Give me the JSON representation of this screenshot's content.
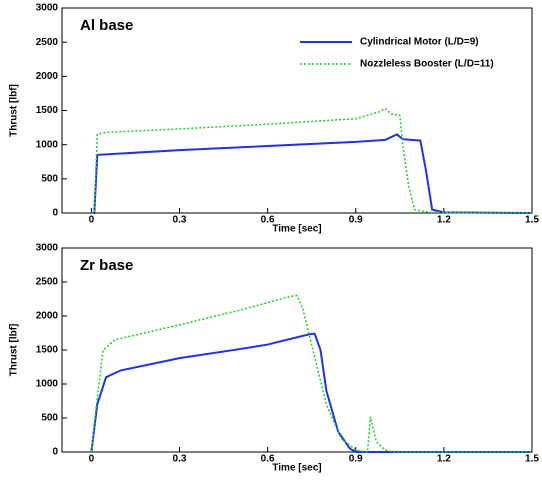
{
  "chart_data": [
    {
      "type": "line",
      "annotation": "Al base",
      "xlabel": "Time [sec]",
      "ylabel": "Thrust [lbf]",
      "xlim": [
        -0.1,
        1.5
      ],
      "ylim": [
        0,
        3000
      ],
      "xticks": [
        0,
        0.3,
        0.6,
        0.9,
        1.2,
        1.5
      ],
      "yticks": [
        0,
        500,
        1000,
        1500,
        2000,
        2500,
        3000
      ],
      "legend": "upper right",
      "series": [
        {
          "name": "Cylindrical Motor (L/D=9)",
          "color": "#2233dd",
          "style": "solid",
          "x": [
            0,
            0.01,
            0.02,
            0.1,
            0.3,
            0.6,
            0.9,
            1.0,
            1.04,
            1.06,
            1.12,
            1.14,
            1.16,
            1.2,
            1.5
          ],
          "values": [
            0,
            0,
            850,
            870,
            920,
            980,
            1040,
            1070,
            1150,
            1080,
            1060,
            600,
            50,
            10,
            0
          ]
        },
        {
          "name": "Nozzleless Booster (L/D=11)",
          "color": "#22cc22",
          "style": "dotted",
          "x": [
            0,
            0.01,
            0.02,
            0.05,
            0.3,
            0.6,
            0.9,
            0.98,
            1.0,
            1.02,
            1.05,
            1.06,
            1.08,
            1.1,
            1.15,
            1.5
          ],
          "values": [
            0,
            0,
            1150,
            1180,
            1230,
            1300,
            1380,
            1480,
            1530,
            1450,
            1430,
            1000,
            400,
            50,
            10,
            0
          ]
        }
      ]
    },
    {
      "type": "line",
      "annotation": "Zr base",
      "xlabel": "Time [sec]",
      "ylabel": "Thrust [lbf]",
      "xlim": [
        -0.1,
        1.5
      ],
      "ylim": [
        0,
        3000
      ],
      "xticks": [
        0,
        0.3,
        0.6,
        0.9,
        1.2,
        1.5
      ],
      "yticks": [
        0,
        500,
        1000,
        1500,
        2000,
        2500,
        3000
      ],
      "series": [
        {
          "name": "Cylindrical Motor (L/D=9)",
          "color": "#2233dd",
          "style": "solid",
          "x": [
            0,
            0.02,
            0.05,
            0.1,
            0.3,
            0.5,
            0.6,
            0.74,
            0.76,
            0.78,
            0.8,
            0.84,
            0.88,
            0.9,
            1.5
          ],
          "values": [
            0,
            700,
            1100,
            1200,
            1380,
            1510,
            1580,
            1730,
            1740,
            1500,
            900,
            300,
            50,
            0,
            0
          ]
        },
        {
          "name": "Nozzleless Booster (L/D=11)",
          "color": "#22cc22",
          "style": "dotted",
          "x": [
            0,
            0.02,
            0.04,
            0.08,
            0.3,
            0.5,
            0.68,
            0.7,
            0.72,
            0.76,
            0.8,
            0.85,
            0.9,
            0.94,
            0.95,
            0.97,
            1.0,
            1.03,
            1.5
          ],
          "values": [
            0,
            800,
            1500,
            1650,
            1870,
            2080,
            2290,
            2300,
            2100,
            1400,
            700,
            200,
            30,
            0,
            520,
            150,
            30,
            0,
            0
          ]
        }
      ]
    }
  ]
}
